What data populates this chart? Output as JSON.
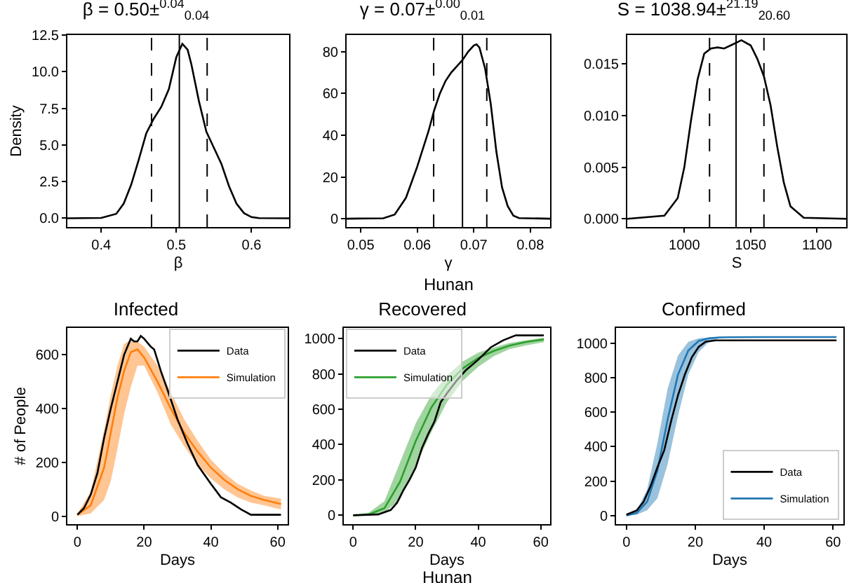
{
  "chart_data": [
    {
      "type": "line",
      "title": "β = 0.50±$^{0.04}$$_{0.04}$",
      "xlabel": "β",
      "ylabel": "Density",
      "xlim": [
        0.355,
        0.65
      ],
      "xticks": [
        0.4,
        0.5,
        0.6
      ],
      "ylim": [
        -0.6,
        12.5
      ],
      "yticks": [
        {
          "value": 0,
          "label": "0.0"
        },
        {
          "value": 2.5,
          "label": "2.5"
        },
        {
          "value": 5,
          "label": "5.0"
        },
        {
          "value": 7.5,
          "label": "7.5"
        },
        {
          "value": 10,
          "label": "10.0"
        },
        {
          "value": 12.5,
          "label": "12.5"
        }
      ],
      "series": [
        {
          "color": "#000000",
          "x": [
            0.355,
            0.4,
            0.42,
            0.43,
            0.44,
            0.45,
            0.46,
            0.47,
            0.48,
            0.49,
            0.5,
            0.508,
            0.515,
            0.52,
            0.53,
            0.54,
            0.55,
            0.56,
            0.57,
            0.58,
            0.59,
            0.6,
            0.61,
            0.65
          ],
          "values": [
            0,
            0.02,
            0.3,
            1,
            2.3,
            4,
            5.8,
            6.8,
            7.6,
            8.8,
            11,
            11.9,
            11.5,
            10.5,
            8,
            5.9,
            4.8,
            3.7,
            2.2,
            1,
            0.35,
            0.08,
            0.01,
            0
          ]
        }
      ],
      "ref_lines": [
        {
          "axis": "x",
          "value": 0.504,
          "color": "#000000",
          "line_style": "solid"
        },
        {
          "axis": "x",
          "value": 0.467,
          "color": "#000000",
          "line_style": "dashed"
        },
        {
          "axis": "x",
          "value": 0.541,
          "color": "#000000",
          "line_style": "dashed"
        }
      ]
    },
    {
      "type": "line",
      "title": "γ = 0.07±$^{0.00}$$_{0.01}$",
      "xlabel": "γ",
      "xlim": [
        0.0475,
        0.0835
      ],
      "xticks": [
        0.05,
        0.06,
        0.07,
        0.08
      ],
      "ylim": [
        -4,
        88
      ],
      "yticks": [
        0,
        20,
        40,
        60,
        80
      ],
      "series": [
        {
          "color": "#000000",
          "x": [
            0.0475,
            0.054,
            0.056,
            0.058,
            0.06,
            0.062,
            0.063,
            0.064,
            0.065,
            0.066,
            0.067,
            0.068,
            0.069,
            0.07,
            0.0705,
            0.071,
            0.072,
            0.073,
            0.074,
            0.075,
            0.076,
            0.077,
            0.078,
            0.0835
          ],
          "values": [
            0,
            0.2,
            2,
            10,
            25,
            42,
            52,
            60,
            66,
            70,
            73,
            76,
            80,
            83,
            83.5,
            82,
            72,
            55,
            32,
            15,
            6,
            1.5,
            0.3,
            0
          ]
        }
      ],
      "ref_lines": [
        {
          "axis": "x",
          "value": 0.068,
          "color": "#000000",
          "line_style": "solid"
        },
        {
          "axis": "x",
          "value": 0.0629,
          "color": "#000000",
          "line_style": "dashed"
        },
        {
          "axis": "x",
          "value": 0.0723,
          "color": "#000000",
          "line_style": "dashed"
        }
      ],
      "annotations": [
        "Hunan"
      ]
    },
    {
      "type": "line",
      "title": "S = 1038.94±$^{21.19}$$_{20.60}$",
      "xlabel": "S",
      "xlim": [
        957,
        1122
      ],
      "xticks": [
        1000,
        1050,
        1100
      ],
      "ylim": [
        -0.0008,
        0.0178
      ],
      "yticks": [
        {
          "value": 0,
          "label": "0.000"
        },
        {
          "value": 0.005,
          "label": "0.005"
        },
        {
          "value": 0.01,
          "label": "0.010"
        },
        {
          "value": 0.015,
          "label": "0.015"
        }
      ],
      "series": [
        {
          "color": "#000000",
          "x": [
            957,
            985,
            995,
            1000,
            1005,
            1010,
            1015,
            1020,
            1025,
            1030,
            1035,
            1043,
            1050,
            1055,
            1060,
            1065,
            1070,
            1075,
            1080,
            1090,
            1122
          ],
          "values": [
            0,
            0.0003,
            0.002,
            0.005,
            0.0095,
            0.0135,
            0.016,
            0.0165,
            0.0166,
            0.0165,
            0.0168,
            0.0173,
            0.0168,
            0.0155,
            0.0138,
            0.011,
            0.007,
            0.0035,
            0.0012,
            0.0001,
            0
          ]
        }
      ],
      "ref_lines": [
        {
          "axis": "x",
          "value": 1039,
          "color": "#000000",
          "line_style": "solid"
        },
        {
          "axis": "x",
          "value": 1019,
          "color": "#000000",
          "line_style": "dashed"
        },
        {
          "axis": "x",
          "value": 1060,
          "color": "#000000",
          "line_style": "dashed"
        }
      ]
    },
    {
      "type": "line",
      "title": "Infected",
      "xlabel": "Days",
      "ylabel": "# of People",
      "xlim": [
        -3,
        63
      ],
      "xticks": [
        0,
        20,
        40,
        60
      ],
      "ylim": [
        -30,
        700
      ],
      "yticks": [
        0,
        200,
        400,
        600
      ],
      "legend": "top right",
      "series": [
        {
          "name": "Data",
          "color": "#000000",
          "x": [
            0,
            2,
            4,
            6,
            8,
            10,
            12,
            14,
            16,
            17,
            18,
            19,
            20,
            22,
            23,
            25,
            27,
            30,
            33,
            36,
            40,
            43,
            46,
            49,
            52,
            55,
            61
          ],
          "values": [
            5,
            30,
            80,
            160,
            290,
            400,
            500,
            600,
            660,
            650,
            650,
            670,
            660,
            630,
            620,
            540,
            470,
            360,
            270,
            190,
            120,
            70,
            50,
            25,
            5,
            5,
            5
          ]
        },
        {
          "name": "Simulation",
          "color": "#ff7f0e",
          "x": [
            0,
            4,
            8,
            10,
            12,
            14,
            16,
            18,
            20,
            24,
            28,
            32,
            36,
            40,
            44,
            48,
            52,
            56,
            61
          ],
          "values": [
            5,
            40,
            180,
            310,
            440,
            540,
            610,
            620,
            590,
            500,
            400,
            310,
            240,
            180,
            135,
            100,
            75,
            60,
            45
          ],
          "lower": [
            0,
            10,
            60,
            130,
            250,
            380,
            480,
            560,
            560,
            460,
            340,
            260,
            190,
            140,
            100,
            70,
            50,
            40,
            25
          ],
          "upper": [
            10,
            90,
            320,
            450,
            560,
            640,
            655,
            650,
            630,
            560,
            460,
            360,
            280,
            210,
            160,
            120,
            95,
            75,
            65
          ]
        }
      ]
    },
    {
      "type": "line",
      "title": "Recovered",
      "xlabel": "Days",
      "xlim": [
        -3,
        63
      ],
      "xticks": [
        0,
        20,
        40,
        60
      ],
      "ylim": [
        -50,
        1060
      ],
      "yticks": [
        0,
        200,
        400,
        600,
        800,
        1000
      ],
      "legend": "top left",
      "series": [
        {
          "name": "Data",
          "color": "#000000",
          "x": [
            0,
            8,
            12,
            14,
            16,
            18,
            20,
            22,
            24,
            26,
            28,
            30,
            33,
            36,
            40,
            44,
            48,
            52,
            61
          ],
          "values": [
            0,
            5,
            30,
            70,
            140,
            200,
            270,
            380,
            460,
            530,
            640,
            690,
            760,
            820,
            880,
            950,
            990,
            1018,
            1018
          ]
        },
        {
          "name": "Simulation",
          "color": "#2ca02c",
          "x": [
            0,
            5,
            10,
            15,
            20,
            25,
            30,
            35,
            40,
            45,
            50,
            55,
            61
          ],
          "values": [
            0,
            5,
            40,
            190,
            420,
            610,
            740,
            830,
            890,
            930,
            960,
            980,
            995
          ],
          "lower": [
            0,
            0,
            15,
            90,
            280,
            470,
            640,
            760,
            840,
            900,
            940,
            960,
            980
          ],
          "upper": [
            0,
            15,
            80,
            300,
            520,
            680,
            790,
            870,
            920,
            950,
            975,
            990,
            1005
          ]
        }
      ],
      "annotations": [
        "Hunan"
      ]
    },
    {
      "type": "line",
      "title": "Confirmed",
      "xlabel": "Days",
      "xlim": [
        -3,
        63
      ],
      "xticks": [
        0,
        20,
        40,
        60
      ],
      "ylim": [
        -50,
        1090
      ],
      "yticks": [
        0,
        200,
        400,
        600,
        800,
        1000
      ],
      "legend": "bottom right",
      "series": [
        {
          "name": "Data",
          "color": "#000000",
          "x": [
            0,
            3,
            5,
            7,
            9,
            11,
            13,
            15,
            17,
            19,
            21,
            23,
            26,
            61
          ],
          "values": [
            5,
            30,
            80,
            170,
            280,
            380,
            550,
            700,
            820,
            920,
            980,
            1010,
            1018,
            1018
          ]
        },
        {
          "name": "Simulation",
          "color": "#1f77b4",
          "x": [
            0,
            3,
            6,
            9,
            12,
            15,
            18,
            21,
            24,
            27,
            30,
            40,
            61
          ],
          "values": [
            0,
            15,
            80,
            260,
            560,
            820,
            960,
            1015,
            1030,
            1035,
            1036,
            1037,
            1037
          ],
          "lower": [
            0,
            5,
            30,
            100,
            300,
            580,
            820,
            950,
            1010,
            1030,
            1035,
            1037,
            1037
          ],
          "upper": [
            0,
            30,
            150,
            420,
            740,
            930,
            1010,
            1030,
            1035,
            1037,
            1037,
            1037,
            1037
          ]
        }
      ]
    }
  ]
}
